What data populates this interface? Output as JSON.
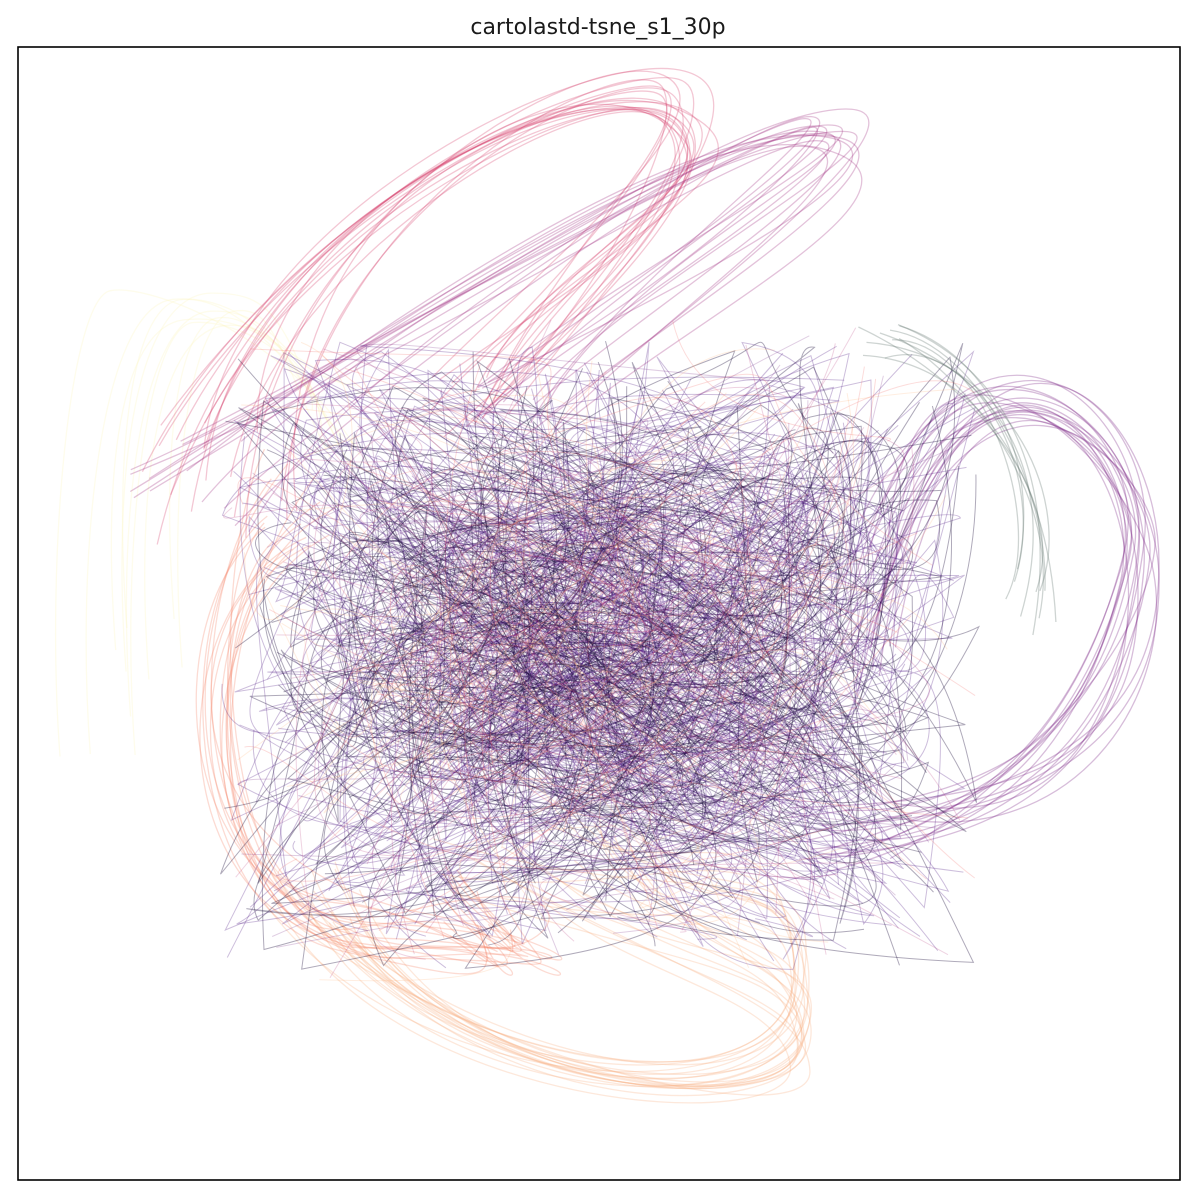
{
  "chart_data": {
    "type": "line",
    "title": "cartolastd-tsne_s1_30p",
    "xlabel": "",
    "ylabel": "",
    "axes_ticks": "hidden",
    "grid": false,
    "legend": "none",
    "colormap": "magma",
    "colormap_stops": [
      "#000004",
      "#2c115f",
      "#721f81",
      "#b73779",
      "#f1605d",
      "#feb078",
      "#fcfdbf"
    ],
    "line_opacity": 0.25,
    "series_groups": [
      {
        "color": "#fcf6c0",
        "shape": "vertical-hook",
        "count": 10
      },
      {
        "color": "#f9b487",
        "shape": "bottom-loop",
        "count": 22
      },
      {
        "color": "#f4876e",
        "shape": "left-drape",
        "count": 16
      },
      {
        "color": "#d6456f",
        "shape": "top-arc",
        "count": 18
      },
      {
        "color": "#a33585",
        "shape": "diagonal-band",
        "count": 14
      },
      {
        "color": "#7a2684",
        "shape": "right-loop",
        "count": 18
      },
      {
        "color": "#4b1580",
        "shape": "core-tangle",
        "count": 120
      },
      {
        "color": "#1b0c3a",
        "shape": "core-tangle",
        "count": 80
      },
      {
        "color": "#5c6f6a",
        "shape": "right-fringe",
        "count": 10
      }
    ]
  }
}
